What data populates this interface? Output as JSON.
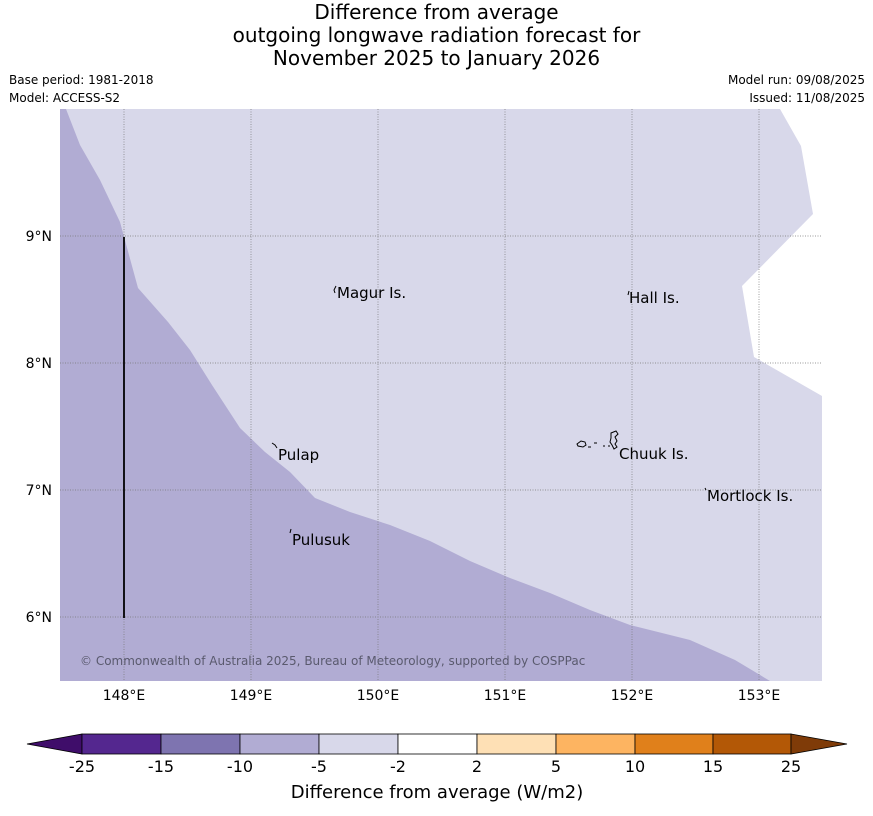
{
  "title_lines": [
    "Difference from average",
    "outgoing longwave radiation forecast for",
    "November 2025 to January 2026"
  ],
  "meta": {
    "base_period": "Base period: 1981-2018",
    "model": "Model: ACCESS-S2",
    "model_run": "Model run: 09/08/2025",
    "issued": "Issued: 11/08/2025"
  },
  "map": {
    "lat_ticks": [
      "9°N",
      "8°N",
      "7°N",
      "6°N"
    ],
    "lon_ticks": [
      "148°E",
      "149°E",
      "150°E",
      "151°E",
      "152°E",
      "153°E"
    ],
    "places": [
      {
        "name": "Magur Is."
      },
      {
        "name": "Hall Is."
      },
      {
        "name": "Pulap"
      },
      {
        "name": "Chuuk Is."
      },
      {
        "name": "Mortlock Is."
      },
      {
        "name": "Pulusuk"
      }
    ],
    "copyright": "© Commonwealth of Australia 2025, Bureau of Meteorology, supported by COSPPac",
    "regions": [
      {
        "category": "-10 to -5",
        "color": "#b1acd3"
      },
      {
        "category": "-5 to -2",
        "color": "#d8d8ea"
      },
      {
        "category": "-2 to 2",
        "color": "#ffffff"
      }
    ]
  },
  "colorbar": {
    "title": "Difference from average (W/m2)",
    "ticks": [
      "-25",
      "-15",
      "-10",
      "-5",
      "-2",
      "2",
      "5",
      "10",
      "15",
      "25"
    ],
    "colors": [
      "#3f0d6a",
      "#54278f",
      "#7e74b0",
      "#b1acd3",
      "#d8d8ea",
      "#ffffff",
      "#fee0b5",
      "#fdb461",
      "#e0801b",
      "#b35806",
      "#7f3b08"
    ]
  }
}
